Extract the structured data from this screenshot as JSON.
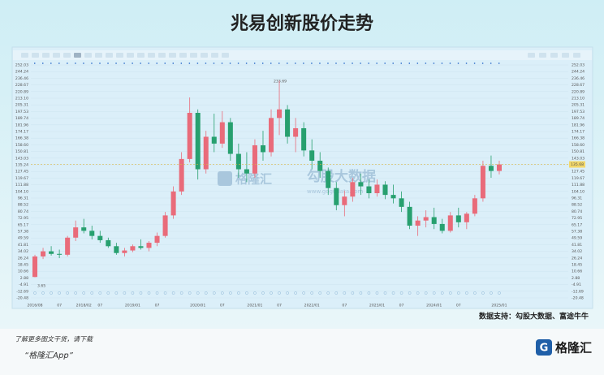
{
  "chart_data": {
    "type": "candlestick",
    "title": "兆易创新股价走势",
    "categories": [
      "2016/08",
      null,
      null,
      "07",
      null,
      null,
      "2018/02",
      null,
      "07",
      null,
      null,
      null,
      "2019/01",
      null,
      null,
      "07",
      null,
      null,
      null,
      null,
      "2020/01",
      null,
      null,
      "07",
      null,
      null,
      null,
      "2021/01",
      null,
      null,
      "07",
      null,
      null,
      null,
      "2022/01",
      null,
      null,
      null,
      "07",
      null,
      null,
      null,
      "2023/01",
      null,
      null,
      "07",
      null,
      null,
      null,
      "2024/01",
      null,
      null,
      "07",
      null,
      null,
      null,
      null,
      "2025/01"
    ],
    "open": [
      4,
      28,
      34,
      31,
      30,
      50,
      62,
      58,
      52,
      47,
      40,
      32,
      35,
      40,
      38,
      44,
      52,
      76,
      104,
      142,
      196,
      130,
      168,
      160,
      185,
      148,
      130,
      125,
      158,
      150,
      190,
      200,
      168,
      178,
      152,
      140,
      128,
      108,
      88,
      98,
      115,
      110,
      102,
      112,
      100,
      96,
      86,
      64,
      70,
      74,
      66,
      58,
      76,
      68,
      78,
      96,
      134,
      128
    ],
    "high": [
      30,
      38,
      40,
      36,
      52,
      70,
      72,
      64,
      58,
      50,
      44,
      38,
      42,
      48,
      46,
      56,
      80,
      110,
      150,
      214,
      200,
      175,
      195,
      198,
      190,
      160,
      150,
      165,
      175,
      200,
      233.69,
      205,
      190,
      185,
      165,
      150,
      132,
      115,
      105,
      120,
      125,
      118,
      118,
      116,
      112,
      104,
      92,
      75,
      82,
      85,
      72,
      80,
      85,
      80,
      100,
      140,
      146,
      140
    ],
    "low": [
      3.65,
      25,
      29,
      26,
      28,
      46,
      55,
      48,
      44,
      38,
      30,
      28,
      33,
      36,
      34,
      40,
      50,
      72,
      100,
      138,
      118,
      125,
      150,
      155,
      140,
      120,
      115,
      120,
      140,
      145,
      170,
      160,
      150,
      145,
      130,
      120,
      100,
      82,
      75,
      92,
      100,
      96,
      98,
      95,
      90,
      80,
      60,
      52,
      62,
      60,
      55,
      56,
      62,
      60,
      75,
      92,
      120,
      124
    ],
    "close": [
      28,
      34,
      31,
      30,
      50,
      62,
      58,
      52,
      47,
      40,
      32,
      35,
      40,
      38,
      44,
      52,
      76,
      104,
      142,
      196,
      130,
      168,
      160,
      185,
      148,
      130,
      125,
      158,
      150,
      190,
      200,
      168,
      178,
      152,
      140,
      128,
      108,
      88,
      98,
      115,
      110,
      102,
      112,
      100,
      96,
      86,
      64,
      70,
      74,
      66,
      58,
      76,
      68,
      78,
      96,
      134,
      128,
      135.68
    ],
    "up_color": "#e96b7a",
    "down_color": "#27a06f",
    "ylim": [
      -20.48,
      252.03
    ],
    "yticks": [
      -20.48,
      -12.69,
      -4.91,
      2.88,
      10.66,
      18.45,
      26.24,
      34.02,
      41.81,
      49.59,
      57.38,
      65.17,
      72.95,
      80.74,
      88.52,
      96.31,
      {
        "value": 104.1,
        "label": "104.10"
      },
      111.88,
      119.67,
      127.45,
      135.24,
      143.03,
      150.81,
      {
        "value": 158.6,
        "label": "158.60"
      },
      166.38,
      174.17,
      181.96,
      189.74,
      197.53,
      205.31,
      {
        "value": 213.1,
        "label": "213.10"
      },
      220.89,
      228.67,
      236.46,
      244.24,
      252.03
    ],
    "grid": true,
    "annotations": [
      "233.69",
      "3.65"
    ],
    "watermark": [
      "格隆汇",
      "勾股大数据",
      "www.gogudata.com"
    ],
    "source": "数据支持：勾股大数据、富途牛牛"
  },
  "footer": {
    "line1": "了解更多图文干货，请下载",
    "line2": "“格隆汇App”",
    "logo": "格隆汇"
  }
}
